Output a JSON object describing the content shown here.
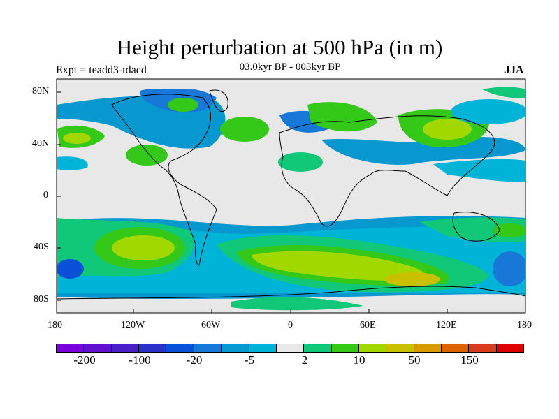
{
  "title": "Height perturbation at 500 hPa (in m)",
  "experiment_label": "Expt = teadd3-tdacd",
  "period_label": "03.0kyr BP - 003kyr BP",
  "season_label": "JJA",
  "lat_ticks": [
    "80N",
    "40N",
    "0",
    "40S",
    "80S"
  ],
  "lon_ticks": [
    "180",
    "120W",
    "60W",
    "0",
    "60E",
    "120E",
    "180"
  ],
  "colorbar": {
    "colors": [
      "#7a00dc",
      "#6010d0",
      "#4a20c8",
      "#2a30c8",
      "#0a50d8",
      "#1878d8",
      "#0898d0",
      "#00b4d8",
      "#e8e8e8",
      "#10c878",
      "#34c818",
      "#a0d800",
      "#c8c000",
      "#d89a00",
      "#dc6400",
      "#d83c1c",
      "#dc0000"
    ],
    "labels": [
      "-200",
      "-100",
      "-20",
      "-5",
      "2",
      "10",
      "50",
      "150"
    ]
  }
}
